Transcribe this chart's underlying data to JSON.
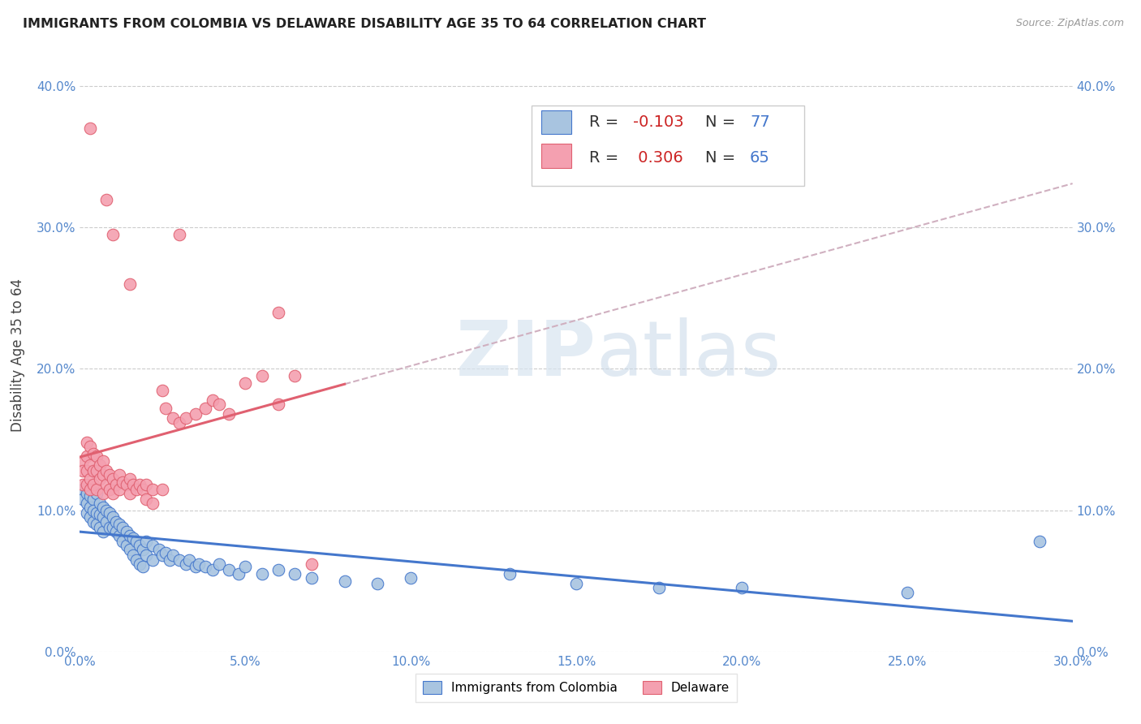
{
  "title": "IMMIGRANTS FROM COLOMBIA VS DELAWARE DISABILITY AGE 35 TO 64 CORRELATION CHART",
  "source": "Source: ZipAtlas.com",
  "xlim": [
    0.0,
    0.3
  ],
  "ylim": [
    0.0,
    0.42
  ],
  "ylabel": "Disability Age 35 to 64",
  "legend_label1": "Immigrants from Colombia",
  "legend_label2": "Delaware",
  "r1": -0.103,
  "n1": 77,
  "r2": 0.306,
  "n2": 65,
  "color_blue": "#a8c4e0",
  "color_pink": "#f4a0b0",
  "trendline_blue": "#4477cc",
  "trendline_pink": "#e06070",
  "trendline_dashed": "#d0b0c0",
  "watermark_zip": "ZIP",
  "watermark_atlas": "atlas",
  "blue_scatter": [
    [
      0.001,
      0.115
    ],
    [
      0.001,
      0.108
    ],
    [
      0.002,
      0.112
    ],
    [
      0.002,
      0.105
    ],
    [
      0.002,
      0.098
    ],
    [
      0.003,
      0.11
    ],
    [
      0.003,
      0.102
    ],
    [
      0.003,
      0.095
    ],
    [
      0.004,
      0.108
    ],
    [
      0.004,
      0.1
    ],
    [
      0.004,
      0.092
    ],
    [
      0.005,
      0.112
    ],
    [
      0.005,
      0.098
    ],
    [
      0.005,
      0.09
    ],
    [
      0.006,
      0.105
    ],
    [
      0.006,
      0.097
    ],
    [
      0.006,
      0.088
    ],
    [
      0.007,
      0.102
    ],
    [
      0.007,
      0.095
    ],
    [
      0.007,
      0.085
    ],
    [
      0.008,
      0.1
    ],
    [
      0.008,
      0.092
    ],
    [
      0.009,
      0.098
    ],
    [
      0.009,
      0.088
    ],
    [
      0.01,
      0.095
    ],
    [
      0.01,
      0.088
    ],
    [
      0.011,
      0.092
    ],
    [
      0.011,
      0.085
    ],
    [
      0.012,
      0.09
    ],
    [
      0.012,
      0.082
    ],
    [
      0.013,
      0.088
    ],
    [
      0.013,
      0.078
    ],
    [
      0.014,
      0.085
    ],
    [
      0.014,
      0.075
    ],
    [
      0.015,
      0.082
    ],
    [
      0.015,
      0.072
    ],
    [
      0.016,
      0.08
    ],
    [
      0.016,
      0.068
    ],
    [
      0.017,
      0.078
    ],
    [
      0.017,
      0.065
    ],
    [
      0.018,
      0.075
    ],
    [
      0.018,
      0.062
    ],
    [
      0.019,
      0.072
    ],
    [
      0.019,
      0.06
    ],
    [
      0.02,
      0.078
    ],
    [
      0.02,
      0.068
    ],
    [
      0.022,
      0.075
    ],
    [
      0.022,
      0.065
    ],
    [
      0.024,
      0.072
    ],
    [
      0.025,
      0.068
    ],
    [
      0.026,
      0.07
    ],
    [
      0.027,
      0.065
    ],
    [
      0.028,
      0.068
    ],
    [
      0.03,
      0.065
    ],
    [
      0.032,
      0.062
    ],
    [
      0.033,
      0.065
    ],
    [
      0.035,
      0.06
    ],
    [
      0.036,
      0.062
    ],
    [
      0.038,
      0.06
    ],
    [
      0.04,
      0.058
    ],
    [
      0.042,
      0.062
    ],
    [
      0.045,
      0.058
    ],
    [
      0.048,
      0.055
    ],
    [
      0.05,
      0.06
    ],
    [
      0.055,
      0.055
    ],
    [
      0.06,
      0.058
    ],
    [
      0.065,
      0.055
    ],
    [
      0.07,
      0.052
    ],
    [
      0.08,
      0.05
    ],
    [
      0.09,
      0.048
    ],
    [
      0.1,
      0.052
    ],
    [
      0.13,
      0.055
    ],
    [
      0.15,
      0.048
    ],
    [
      0.175,
      0.045
    ],
    [
      0.2,
      0.045
    ],
    [
      0.25,
      0.042
    ],
    [
      0.29,
      0.078
    ]
  ],
  "pink_scatter": [
    [
      0.001,
      0.135
    ],
    [
      0.001,
      0.128
    ],
    [
      0.001,
      0.118
    ],
    [
      0.002,
      0.148
    ],
    [
      0.002,
      0.138
    ],
    [
      0.002,
      0.128
    ],
    [
      0.002,
      0.118
    ],
    [
      0.003,
      0.145
    ],
    [
      0.003,
      0.132
    ],
    [
      0.003,
      0.122
    ],
    [
      0.003,
      0.115
    ],
    [
      0.004,
      0.14
    ],
    [
      0.004,
      0.128
    ],
    [
      0.004,
      0.118
    ],
    [
      0.005,
      0.138
    ],
    [
      0.005,
      0.128
    ],
    [
      0.005,
      0.115
    ],
    [
      0.006,
      0.132
    ],
    [
      0.006,
      0.122
    ],
    [
      0.007,
      0.135
    ],
    [
      0.007,
      0.125
    ],
    [
      0.007,
      0.112
    ],
    [
      0.008,
      0.128
    ],
    [
      0.008,
      0.118
    ],
    [
      0.009,
      0.125
    ],
    [
      0.009,
      0.115
    ],
    [
      0.01,
      0.122
    ],
    [
      0.01,
      0.112
    ],
    [
      0.011,
      0.118
    ],
    [
      0.012,
      0.125
    ],
    [
      0.012,
      0.115
    ],
    [
      0.013,
      0.12
    ],
    [
      0.014,
      0.118
    ],
    [
      0.015,
      0.122
    ],
    [
      0.015,
      0.112
    ],
    [
      0.016,
      0.118
    ],
    [
      0.017,
      0.115
    ],
    [
      0.018,
      0.118
    ],
    [
      0.019,
      0.115
    ],
    [
      0.02,
      0.118
    ],
    [
      0.02,
      0.108
    ],
    [
      0.022,
      0.115
    ],
    [
      0.022,
      0.105
    ],
    [
      0.025,
      0.115
    ],
    [
      0.025,
      0.185
    ],
    [
      0.026,
      0.172
    ],
    [
      0.028,
      0.165
    ],
    [
      0.03,
      0.162
    ],
    [
      0.032,
      0.165
    ],
    [
      0.035,
      0.168
    ],
    [
      0.038,
      0.172
    ],
    [
      0.04,
      0.178
    ],
    [
      0.042,
      0.175
    ],
    [
      0.045,
      0.168
    ],
    [
      0.05,
      0.19
    ],
    [
      0.055,
      0.195
    ],
    [
      0.06,
      0.175
    ],
    [
      0.065,
      0.195
    ],
    [
      0.07,
      0.062
    ],
    [
      0.003,
      0.37
    ],
    [
      0.008,
      0.32
    ],
    [
      0.01,
      0.295
    ],
    [
      0.015,
      0.26
    ],
    [
      0.03,
      0.295
    ],
    [
      0.06,
      0.24
    ]
  ]
}
